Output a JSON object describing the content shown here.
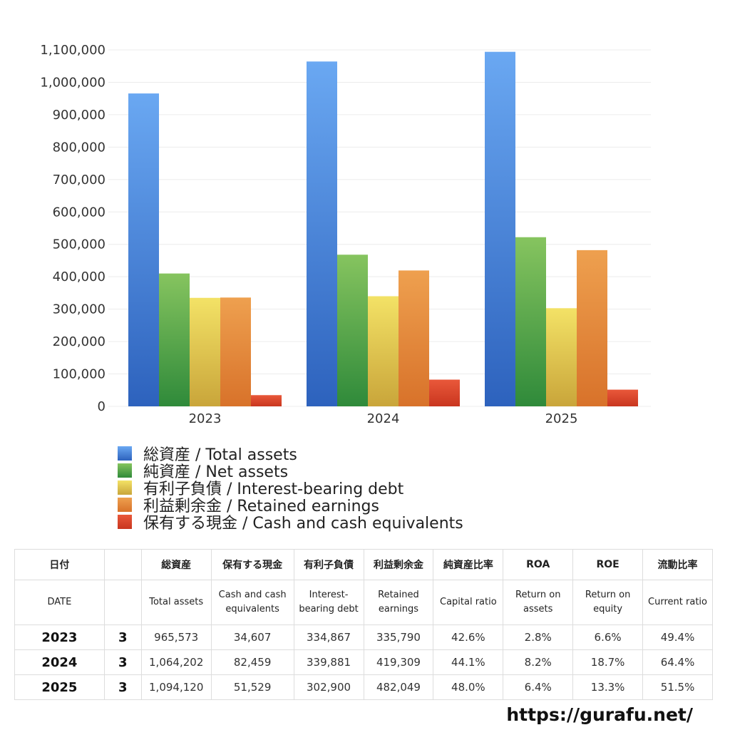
{
  "chart_data": {
    "type": "bar",
    "categories": [
      "2023",
      "2024",
      "2025"
    ],
    "ylim": [
      0,
      1100000
    ],
    "yticks": [
      "0",
      "100,000",
      "200,000",
      "300,000",
      "400,000",
      "500,000",
      "600,000",
      "700,000",
      "800,000",
      "900,000",
      "1,000,000",
      "1,100,000"
    ],
    "ytick_values": [
      0,
      100000,
      200000,
      300000,
      400000,
      500000,
      600000,
      700000,
      800000,
      900000,
      1000000,
      1100000
    ],
    "grid": true,
    "legend_position": "bottom-left",
    "series": [
      {
        "name": "総資産 / Total assets",
        "values": [
          965573,
          1064202,
          1094120
        ],
        "color_top": "#6aa8f2",
        "color_bottom": "#2d62bd"
      },
      {
        "name": "純資産 / Net assets",
        "values": [
          410000,
          468000,
          522000
        ],
        "color_top": "#86c45f",
        "color_bottom": "#2f8a3a"
      },
      {
        "name": "有利子負債 / Interest-bearing debt",
        "values": [
          334867,
          339881,
          302900
        ],
        "color_top": "#f3e266",
        "color_bottom": "#c9a53a"
      },
      {
        "name": "利益剰余金 / Retained earnings",
        "values": [
          335790,
          419309,
          482049
        ],
        "color_top": "#eea04f",
        "color_bottom": "#d8722a"
      },
      {
        "name": "保有する現金 /  Cash and cash equivalents",
        "values": [
          34607,
          82459,
          51529
        ],
        "color_top": "#e9583a",
        "color_bottom": "#c9361f"
      }
    ]
  },
  "table": {
    "header_jp": [
      "日付",
      "",
      "総資産",
      "保有する現金",
      "有利子負債",
      "利益剰余金",
      "純資産比率",
      "ROA",
      "ROE",
      "流動比率"
    ],
    "header_en": [
      "DATE",
      "",
      "Total assets",
      "Cash and cash equivalents",
      "Interest-bearing debt",
      "Retained earnings",
      "Capital ratio",
      "Return on assets",
      "Return on equity",
      "Current ratio"
    ],
    "rows": [
      [
        "2023",
        "3",
        "965,573",
        "34,607",
        "334,867",
        "335,790",
        "42.6%",
        "2.8%",
        "6.6%",
        "49.4%"
      ],
      [
        "2024",
        "3",
        "1,064,202",
        "82,459",
        "339,881",
        "419,309",
        "44.1%",
        "8.2%",
        "18.7%",
        "64.4%"
      ],
      [
        "2025",
        "3",
        "1,094,120",
        "51,529",
        "302,900",
        "482,049",
        "48.0%",
        "6.4%",
        "13.3%",
        "51.5%"
      ]
    ]
  },
  "footer": {
    "url": "https://gurafu.net/"
  }
}
